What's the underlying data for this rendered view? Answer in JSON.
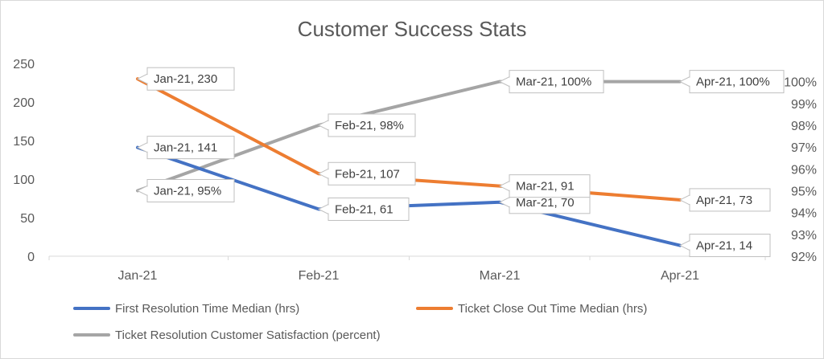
{
  "chart_data": {
    "type": "line",
    "title": "Customer Success Stats",
    "categories": [
      "Jan-21",
      "Feb-21",
      "Mar-21",
      "Apr-21"
    ],
    "y_primary": {
      "min": 0,
      "max": 250,
      "step": 50,
      "tick_labels": [
        "0",
        "50",
        "100",
        "150",
        "200",
        "250"
      ]
    },
    "y_secondary": {
      "min": 92,
      "max": 100.833,
      "step": 1,
      "tick_labels": [
        "92%",
        "93%",
        "94%",
        "95%",
        "96%",
        "97%",
        "98%",
        "99%",
        "100%"
      ]
    },
    "gridlines": false,
    "legend_position": "bottom",
    "series": [
      {
        "name": "First Resolution Time Median (hrs)",
        "axis": "primary",
        "color": "#4472C4",
        "values": [
          141,
          61,
          70,
          14
        ],
        "data_labels": [
          "Jan-21, 141",
          "Feb-21, 61",
          "Mar-21, 70",
          "Apr-21, 14"
        ]
      },
      {
        "name": "Ticket Close Out Time Median (hrs)",
        "axis": "primary",
        "color": "#ED7D31",
        "values": [
          230,
          107,
          91,
          73
        ],
        "data_labels": [
          "Jan-21, 230",
          "Feb-21, 107",
          "Mar-21, 91",
          "Apr-21, 73"
        ]
      },
      {
        "name": "Ticket Resolution Customer Satisfaction (percent)",
        "axis": "secondary",
        "color": "#A5A5A5",
        "values": [
          95,
          98,
          100,
          100
        ],
        "data_labels": [
          "Jan-21, 95%",
          "Feb-21, 98%",
          "Mar-21, 100%",
          "Apr-21, 100%"
        ]
      }
    ]
  }
}
